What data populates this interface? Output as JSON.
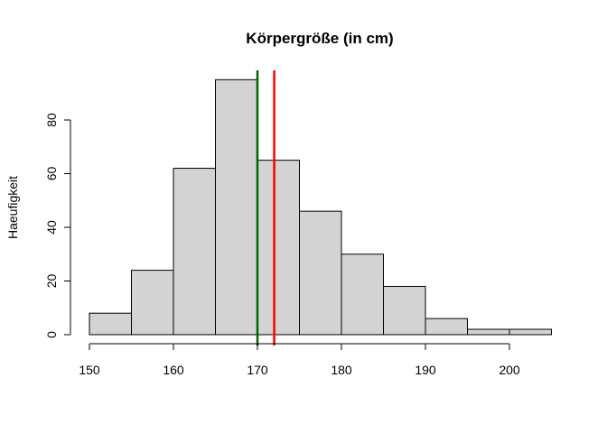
{
  "chart_data": {
    "type": "bar",
    "subtype": "histogram",
    "title": "Körpergröße (in cm)",
    "xlabel": "",
    "ylabel": "Haeufigkeit",
    "bin_edges": [
      150,
      155,
      160,
      165,
      170,
      175,
      180,
      185,
      190,
      195,
      200,
      205
    ],
    "values": [
      8,
      24,
      62,
      95,
      65,
      46,
      30,
      18,
      6,
      2,
      2
    ],
    "xlim": [
      150,
      205
    ],
    "ylim": [
      0,
      95
    ],
    "x_ticks": [
      150,
      160,
      170,
      180,
      190,
      200
    ],
    "y_ticks": [
      0,
      20,
      40,
      60,
      80
    ],
    "grid": false,
    "bar_color": "#d3d3d3",
    "bar_border_color": "#000000",
    "vertical_lines": [
      {
        "x": 170,
        "color": "#006400"
      },
      {
        "x": 172,
        "color": "#ff0000"
      }
    ]
  }
}
